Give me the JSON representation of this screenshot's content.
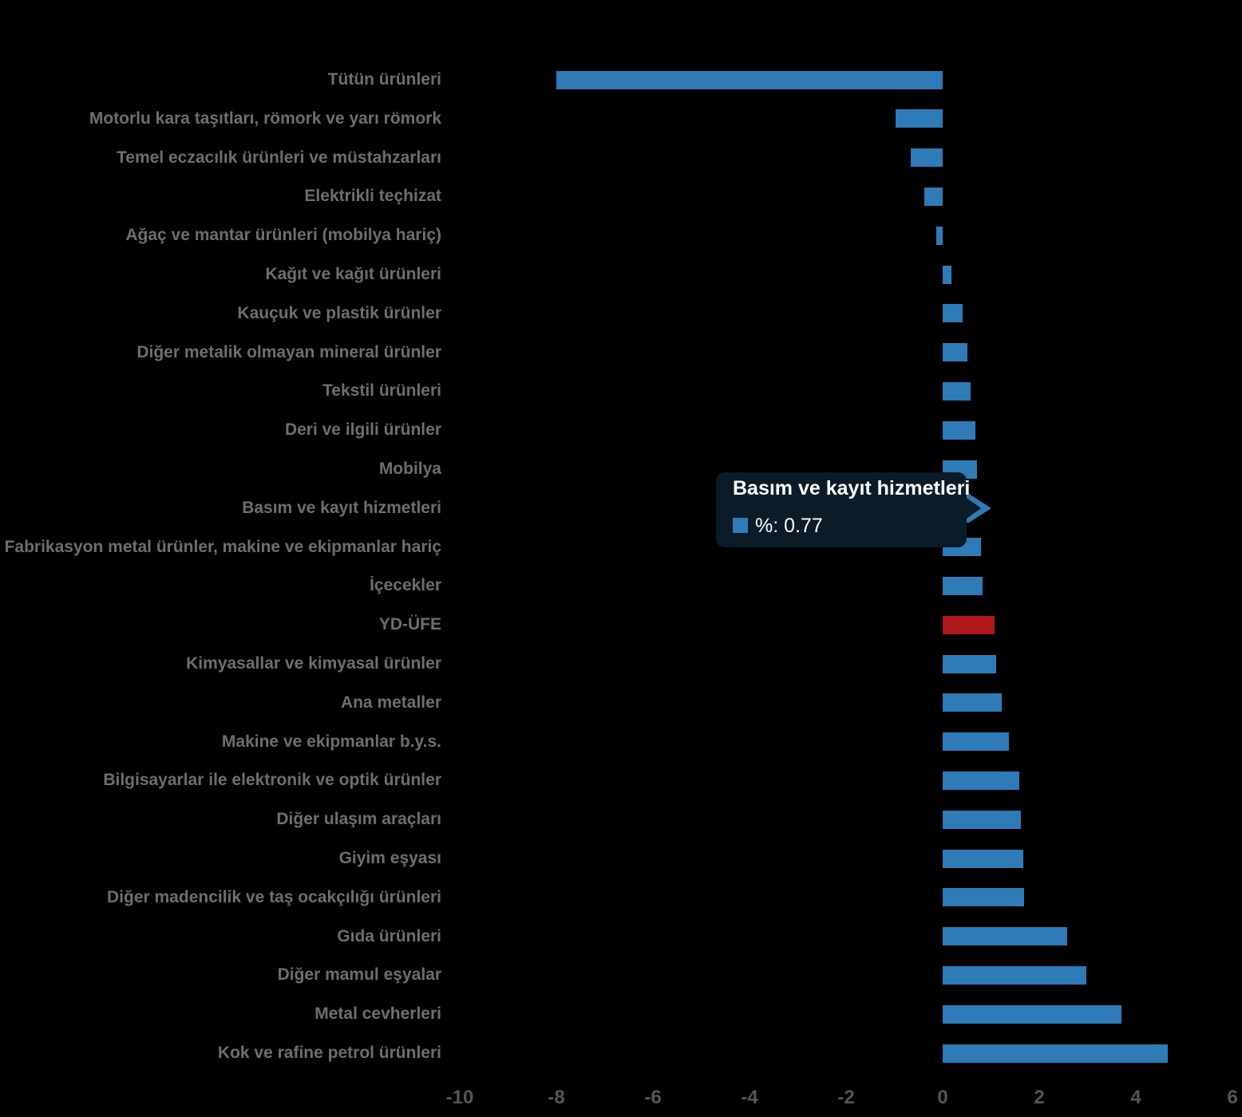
{
  "chart_data": {
    "type": "bar",
    "orientation": "horizontal",
    "categories": [
      "Tütün ürünleri",
      "Motorlu kara taşıtları, römork ve yarı römork",
      "Temel eczacılık ürünleri ve müstahzarları",
      "Elektrikli teçhizat",
      "Ağaç ve mantar ürünleri (mobilya hariç)",
      "Kağıt ve kağıt ürünleri",
      "Kauçuk ve plastik ürünler",
      "Diğer metalik olmayan mineral ürünler",
      "Tekstil ürünleri",
      "Deri ve ilgili ürünler",
      "Mobilya",
      "Basım ve kayıt hizmetleri",
      "Fabrikasyon metal ürünler, makine ve ekipmanlar hariç",
      "İçecekler",
      "YD-ÜFE",
      "Kimyasallar ve kimyasal ürünler",
      "Ana metaller",
      "Makine ve ekipmanlar b.y.s.",
      "Bilgisayarlar ile elektronik ve optik ürünler",
      "Diğer ulaşım araçları",
      "Giyim eşyası",
      "Diğer madencilik ve taş ocakçılığı ürünleri",
      "Gıda ürünleri",
      "Diğer mamul eşyalar",
      "Metal cevherleri",
      "Kok ve rafine petrol ürünleri"
    ],
    "values": [
      -8.0,
      -0.98,
      -0.66,
      -0.38,
      -0.13,
      0.18,
      0.41,
      0.52,
      0.58,
      0.68,
      0.71,
      0.77,
      0.79,
      0.83,
      1.07,
      1.11,
      1.22,
      1.37,
      1.59,
      1.62,
      1.67,
      1.68,
      2.58,
      2.98,
      3.7,
      4.66
    ],
    "special_category": "YD-ÜFE",
    "highlighted": {
      "category": "Basım ve kayıt hizmetleri",
      "value": 0.77,
      "index": 11
    },
    "x_axis": {
      "tick_labels": [
        "-10",
        "-8",
        "-6",
        "-4",
        "-2",
        "0",
        "2",
        "4",
        "6"
      ],
      "tick_values": [
        -10,
        -8,
        -6,
        -4,
        -2,
        0,
        2,
        4,
        6
      ],
      "range": [
        -10.6,
        6.2
      ],
      "grid": false
    },
    "ylabel": "",
    "xlabel": "",
    "title": ""
  },
  "tooltip": {
    "title": "Basım ve kayıt hizmetleri",
    "series_value_label": "%: 0.77"
  },
  "colors": {
    "background": "#000000",
    "bar": "#2e7bb7",
    "special_bar": "#b1171f",
    "category_label": "#6e6e6e",
    "axis_label": "#555555",
    "tooltip_background": "#0c1b28",
    "tooltip_text": "#ffffff"
  }
}
